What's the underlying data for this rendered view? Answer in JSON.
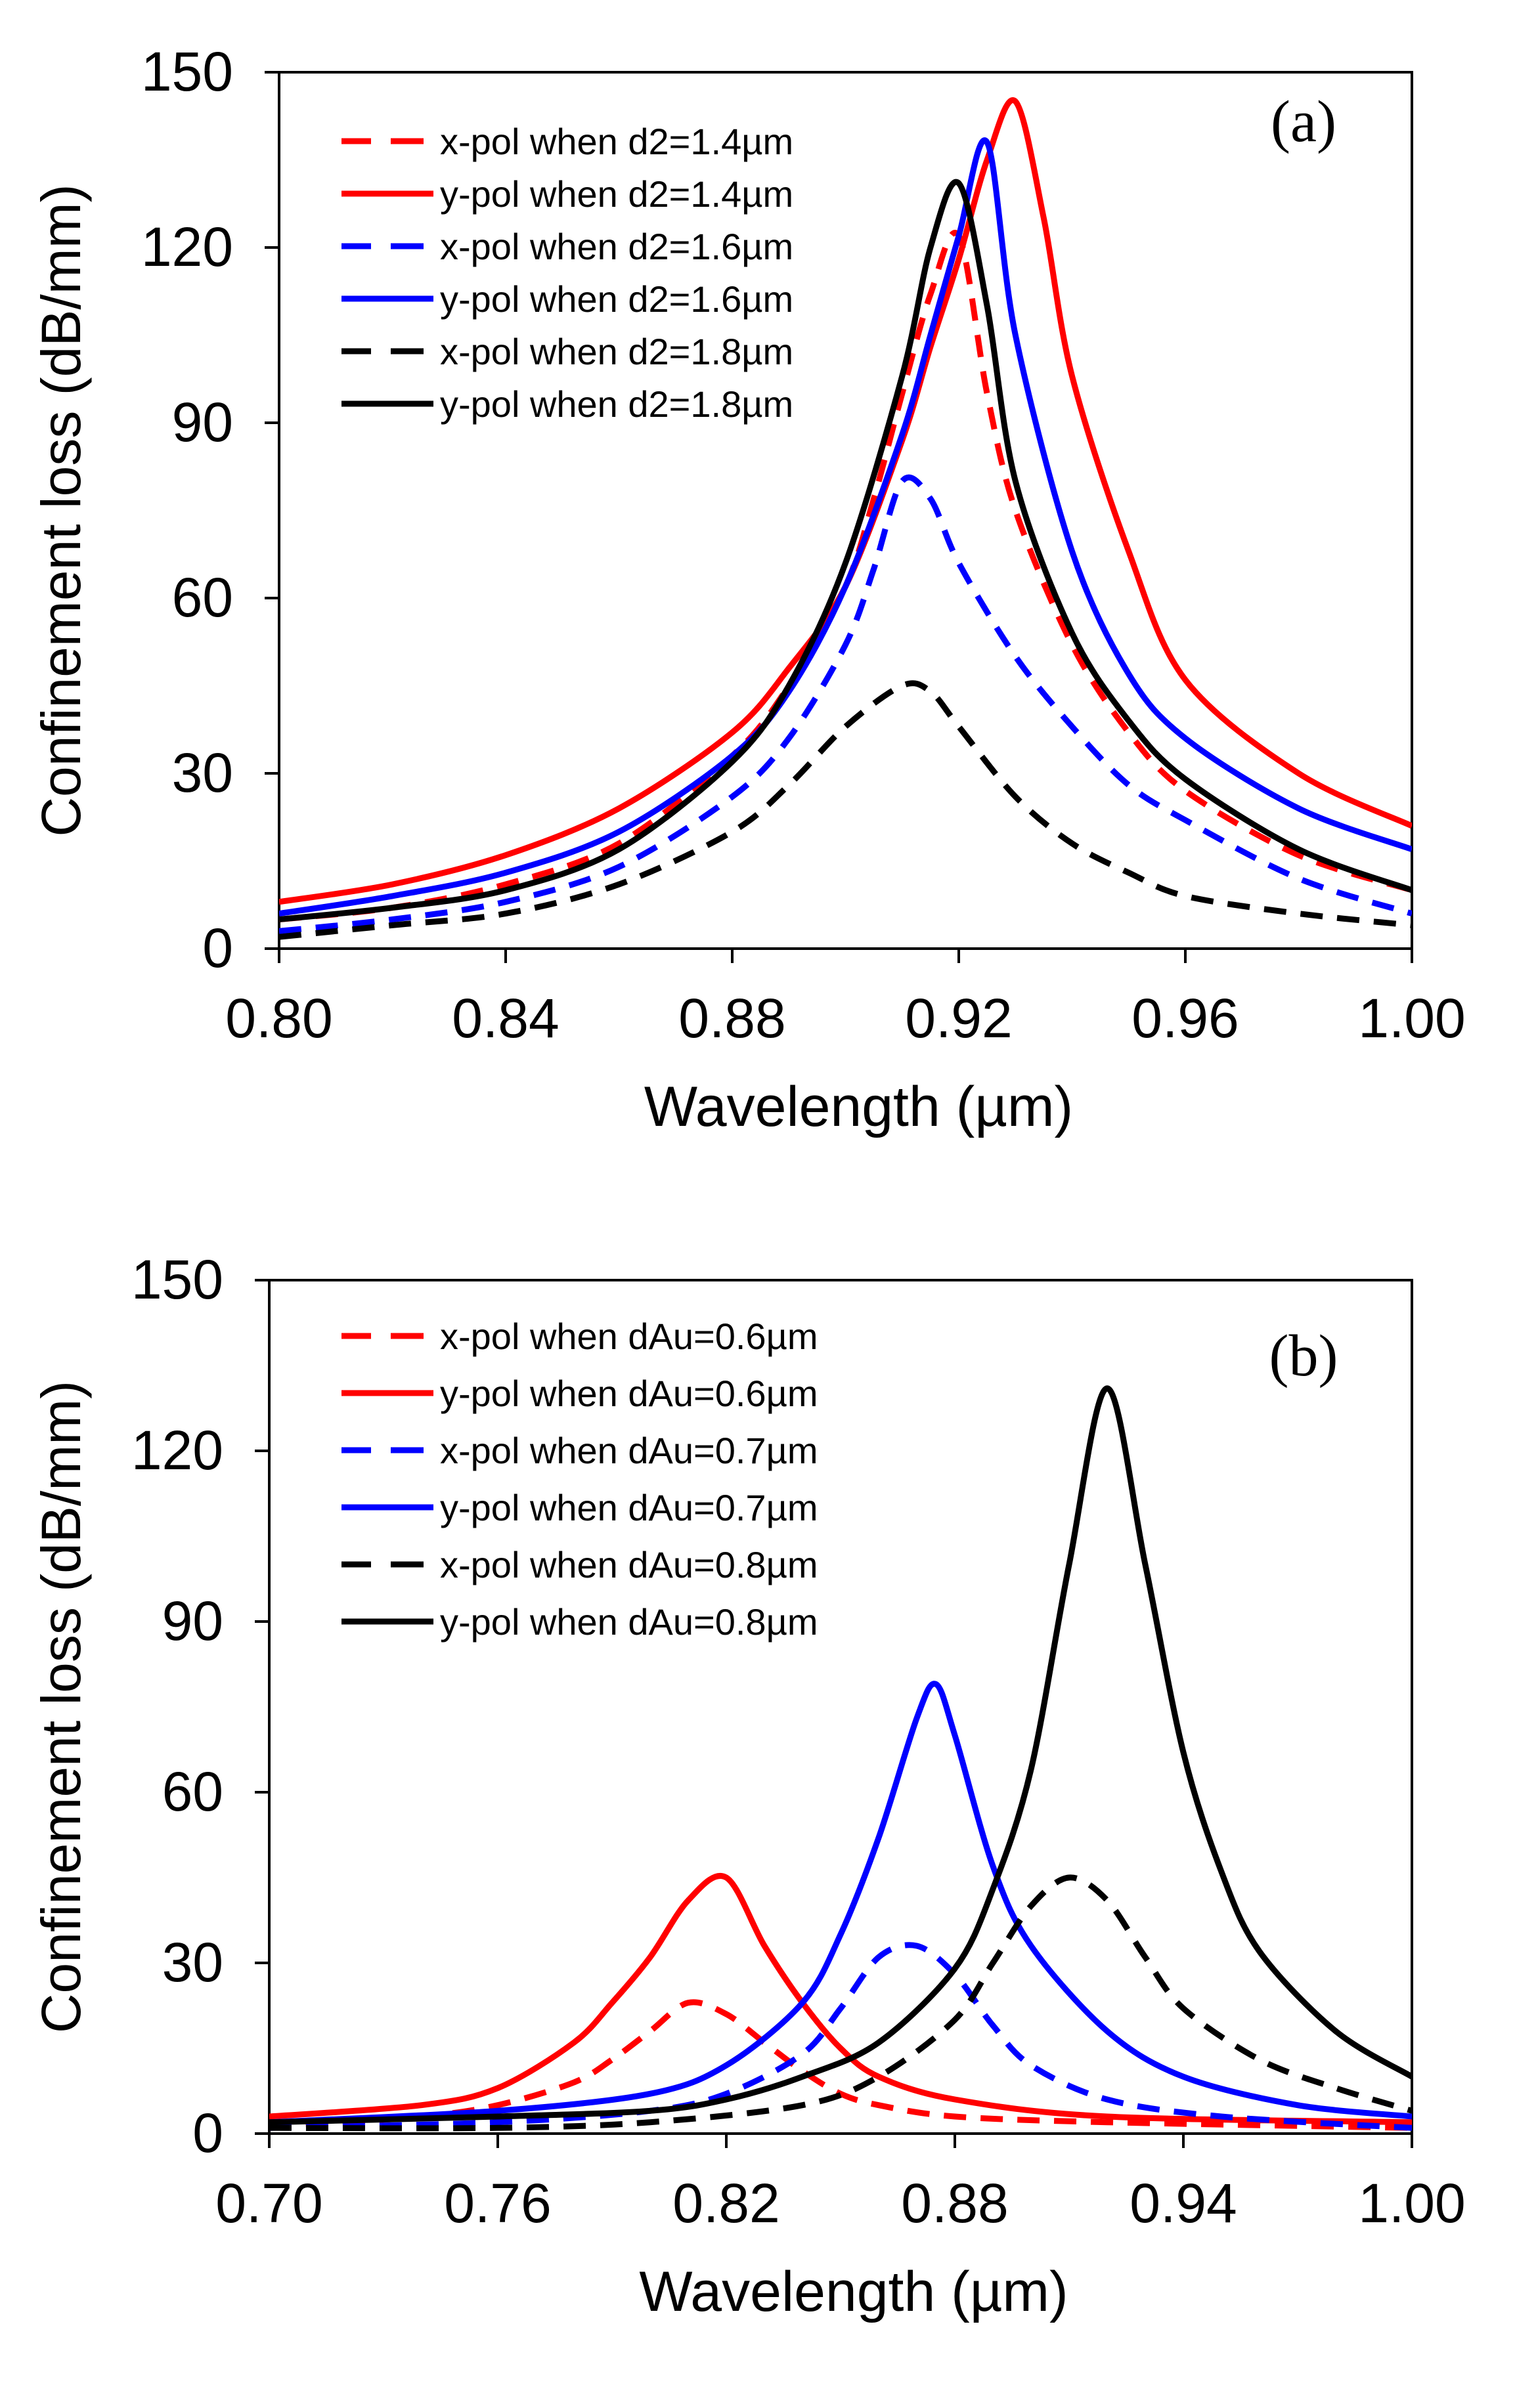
{
  "chart_data": [
    {
      "type": "line",
      "panel": "(a)",
      "xlabel": "Wavelength (µm)",
      "ylabel": "Confinement loss (dB/mm)",
      "xlim": [
        0.8,
        1.0
      ],
      "ylim": [
        0,
        150
      ],
      "x_ticks": [
        0.8,
        0.84,
        0.88,
        0.92,
        0.96,
        1.0
      ],
      "x_tick_labels": [
        "0.80",
        "0.84",
        "0.88",
        "0.92",
        "0.96",
        "1.00"
      ],
      "y_ticks": [
        0,
        30,
        60,
        90,
        120,
        150
      ],
      "y_tick_labels": [
        "0",
        "30",
        "60",
        "90",
        "120",
        "150"
      ],
      "legend_position": "top-left",
      "grid": false,
      "series": [
        {
          "name": "x-pol when d2=1.4µm",
          "color": "#ff0000",
          "dash": true,
          "x": [
            0.8,
            0.82,
            0.84,
            0.86,
            0.88,
            0.89,
            0.9,
            0.905,
            0.91,
            0.915,
            0.92,
            0.925,
            0.93,
            0.94,
            0.95,
            0.96,
            0.98,
            1.0
          ],
          "y": [
            5,
            7,
            11,
            18,
            33,
            45,
            62,
            77,
            95,
            112,
            122,
            95,
            75,
            52,
            37,
            27,
            16,
            10
          ]
        },
        {
          "name": "y-pol when d2=1.4µm",
          "color": "#ff0000",
          "dash": false,
          "x": [
            0.8,
            0.82,
            0.84,
            0.86,
            0.88,
            0.89,
            0.9,
            0.91,
            0.915,
            0.92,
            0.925,
            0.93,
            0.935,
            0.94,
            0.95,
            0.96,
            0.98,
            1.0
          ],
          "y": [
            8,
            11,
            16,
            24,
            37,
            48,
            62,
            87,
            103,
            118,
            135,
            145,
            125,
            98,
            68,
            46,
            30,
            21
          ]
        },
        {
          "name": "x-pol when d2=1.6µm",
          "color": "#0000ff",
          "dash": true,
          "x": [
            0.8,
            0.82,
            0.84,
            0.86,
            0.88,
            0.89,
            0.9,
            0.905,
            0.91,
            0.915,
            0.92,
            0.93,
            0.94,
            0.95,
            0.96,
            0.98,
            1.0
          ],
          "y": [
            3,
            5,
            8,
            14,
            26,
            36,
            52,
            65,
            80,
            77,
            66,
            50,
            38,
            28,
            22,
            12,
            6
          ]
        },
        {
          "name": "y-pol when d2=1.6µm",
          "color": "#0000ff",
          "dash": false,
          "x": [
            0.8,
            0.82,
            0.84,
            0.86,
            0.88,
            0.89,
            0.9,
            0.91,
            0.915,
            0.92,
            0.925,
            0.93,
            0.94,
            0.95,
            0.96,
            0.98,
            1.0
          ],
          "y": [
            6,
            9,
            13,
            20,
            33,
            44,
            62,
            88,
            105,
            122,
            138,
            105,
            68,
            47,
            36,
            24,
            17
          ]
        },
        {
          "name": "x-pol when d2=1.8µm",
          "color": "#000000",
          "dash": true,
          "x": [
            0.8,
            0.82,
            0.84,
            0.86,
            0.88,
            0.89,
            0.9,
            0.91,
            0.915,
            0.92,
            0.93,
            0.94,
            0.95,
            0.96,
            0.98,
            1.0
          ],
          "y": [
            2,
            4,
            6,
            11,
            20,
            28,
            38,
            45,
            44,
            38,
            26,
            18,
            13,
            9,
            6,
            4
          ]
        },
        {
          "name": "y-pol when d2=1.8µm",
          "color": "#000000",
          "dash": false,
          "x": [
            0.8,
            0.82,
            0.84,
            0.86,
            0.88,
            0.89,
            0.9,
            0.91,
            0.915,
            0.92,
            0.925,
            0.93,
            0.94,
            0.95,
            0.96,
            0.98,
            1.0
          ],
          "y": [
            5,
            7,
            10,
            17,
            32,
            45,
            66,
            98,
            120,
            131,
            110,
            80,
            54,
            39,
            29,
            17,
            10
          ]
        }
      ]
    },
    {
      "type": "line",
      "panel": "(b)",
      "xlabel": "Wavelength (µm)",
      "ylabel": "Confinement loss (dB/mm)",
      "xlim": [
        0.7,
        1.0
      ],
      "ylim": [
        0,
        150
      ],
      "x_ticks": [
        0.7,
        0.76,
        0.82,
        0.88,
        0.94,
        1.0
      ],
      "x_tick_labels": [
        "0.70",
        "0.76",
        "0.82",
        "0.88",
        "0.94",
        "1.00"
      ],
      "y_ticks": [
        0,
        30,
        60,
        90,
        120,
        150
      ],
      "y_tick_labels": [
        "0",
        "30",
        "60",
        "90",
        "120",
        "150"
      ],
      "legend_position": "top-left",
      "grid": false,
      "series": [
        {
          "name": "x-pol when dAu=0.6µm",
          "color": "#ff0000",
          "dash": true,
          "x": [
            0.7,
            0.74,
            0.76,
            0.78,
            0.79,
            0.8,
            0.81,
            0.82,
            0.83,
            0.84,
            0.85,
            0.86,
            0.88,
            0.92,
            1.0
          ],
          "y": [
            1,
            3,
            5,
            9,
            13,
            18,
            23,
            21,
            16,
            11,
            7,
            5,
            3,
            2,
            1
          ]
        },
        {
          "name": "y-pol when dAu=0.6µm",
          "color": "#ff0000",
          "dash": false,
          "x": [
            0.7,
            0.74,
            0.76,
            0.78,
            0.79,
            0.8,
            0.81,
            0.82,
            0.83,
            0.84,
            0.85,
            0.86,
            0.88,
            0.92,
            1.0
          ],
          "y": [
            3,
            5,
            8,
            16,
            23,
            31,
            41,
            45,
            33,
            23,
            15,
            10,
            6,
            3,
            2
          ]
        },
        {
          "name": "x-pol when dAu=0.7µm",
          "color": "#0000ff",
          "dash": true,
          "x": [
            0.7,
            0.76,
            0.8,
            0.82,
            0.84,
            0.85,
            0.86,
            0.87,
            0.88,
            0.89,
            0.9,
            0.92,
            0.95,
            1.0
          ],
          "y": [
            1,
            2,
            4,
            7,
            14,
            22,
            31,
            33,
            28,
            19,
            12,
            6,
            3,
            1
          ]
        },
        {
          "name": "y-pol when dAu=0.7µm",
          "color": "#0000ff",
          "dash": false,
          "x": [
            0.7,
            0.76,
            0.8,
            0.82,
            0.84,
            0.85,
            0.86,
            0.87,
            0.875,
            0.88,
            0.89,
            0.9,
            0.92,
            0.94,
            0.97,
            1.0
          ],
          "y": [
            2,
            4,
            7,
            12,
            23,
            35,
            52,
            73,
            79,
            70,
            47,
            33,
            18,
            10,
            5,
            3
          ]
        },
        {
          "name": "x-pol when dAu=0.8µm",
          "color": "#000000",
          "dash": true,
          "x": [
            0.7,
            0.76,
            0.8,
            0.84,
            0.86,
            0.88,
            0.89,
            0.9,
            0.91,
            0.92,
            0.93,
            0.94,
            0.96,
            0.98,
            1.0
          ],
          "y": [
            1,
            1,
            2,
            5,
            10,
            20,
            30,
            40,
            45,
            41,
            31,
            22,
            13,
            8,
            4
          ]
        },
        {
          "name": "y-pol when dAu=0.8µm",
          "color": "#000000",
          "dash": false,
          "x": [
            0.7,
            0.76,
            0.8,
            0.82,
            0.84,
            0.86,
            0.88,
            0.89,
            0.9,
            0.91,
            0.92,
            0.93,
            0.94,
            0.95,
            0.96,
            0.98,
            1.0
          ],
          "y": [
            2,
            3,
            4,
            6,
            10,
            16,
            29,
            43,
            64,
            100,
            131,
            100,
            67,
            46,
            32,
            18,
            10
          ]
        }
      ]
    }
  ]
}
